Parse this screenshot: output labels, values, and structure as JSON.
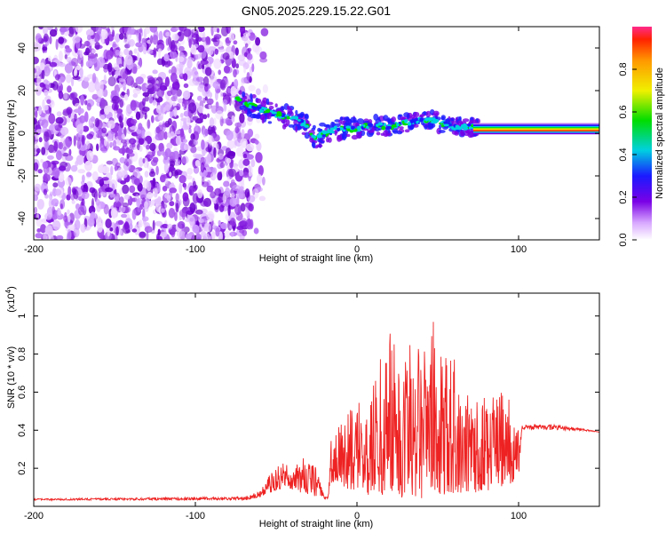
{
  "title": "GN05.2025.229.15.22.G01",
  "colors": {
    "snr_line": "#ee2222",
    "ridge_low": "#7a00e6",
    "ridge_mid": "#00d0e0",
    "ridge_high": "#00dd00",
    "noise": "#8a2be2"
  },
  "chart_data": [
    {
      "type": "heatmap",
      "title": "GN05.2025.229.15.22.G01",
      "xlabel": "Height of straight line (km)",
      "ylabel": "Frequency (Hz)",
      "xlim": [
        -200,
        150
      ],
      "ylim": [
        -50,
        50
      ],
      "xticks": [
        -200,
        -100,
        0,
        100
      ],
      "yticks": [
        -40,
        -20,
        0,
        20,
        40
      ],
      "colorbar": {
        "label": "Normalized spectral amplitude",
        "range": [
          0,
          1
        ],
        "ticks": [
          0.0,
          0.2,
          0.4,
          0.6,
          0.8
        ]
      },
      "noise_region_x": [
        -200,
        -65
      ],
      "ridge": {
        "x": [
          -75,
          -65,
          -55,
          -45,
          -38,
          -32,
          -26,
          -20,
          -12,
          0,
          10,
          20,
          30,
          40,
          45,
          50,
          60,
          70,
          80,
          90,
          100,
          110,
          120,
          130,
          140,
          150
        ],
        "frequency": [
          16,
          13,
          10,
          8,
          7,
          4,
          -2,
          0,
          2,
          2,
          4,
          3,
          5,
          6,
          7,
          5,
          3,
          3,
          2,
          2,
          2,
          2,
          2,
          2,
          2,
          2
        ]
      }
    },
    {
      "type": "line",
      "xlabel": "Height of straight line (km)",
      "ylabel": "SNR (10 * v/v)",
      "y_multiplier": "(x10",
      "y_multiplier_exp": "4",
      "y_multiplier_close": ")",
      "xlim": [
        -200,
        150
      ],
      "ylim": [
        0,
        11200
      ],
      "xticks": [
        -200,
        -100,
        0,
        100
      ],
      "yticks": [
        2000,
        4000,
        6000,
        8000,
        10000
      ],
      "ytick_labels": [
        "0.2",
        "0.4",
        "0.6",
        "0.8",
        "1"
      ],
      "series": [
        {
          "envelope_x": [
            -200,
            -70,
            -60,
            -55,
            -50,
            -45,
            -40,
            -35,
            -30,
            -25,
            -20,
            -18,
            -15,
            -10,
            -5,
            0,
            5,
            10,
            15,
            18,
            20,
            25,
            30,
            35,
            40,
            45,
            48,
            50,
            55,
            60,
            65,
            70,
            75,
            80,
            85,
            90,
            95,
            100,
            102,
            105,
            120,
            140,
            150
          ],
          "envelope_y": [
            400,
            500,
            800,
            1600,
            2000,
            2500,
            2000,
            2500,
            2600,
            2000,
            500,
            500,
            5000,
            4500,
            5000,
            5500,
            6000,
            6500,
            8000,
            9000,
            11200,
            7000,
            9000,
            9500,
            10300,
            9000,
            10300,
            8500,
            8500,
            8000,
            6000,
            6000,
            6500,
            5500,
            5800,
            6200,
            5500,
            4000,
            4300,
            4300,
            4300,
            4100,
            3900
          ],
          "floor_x": [
            -200,
            -70,
            -60,
            -45,
            -30,
            -20,
            -18,
            -15,
            0,
            20,
            40,
            60,
            80,
            95,
            100,
            102,
            150
          ],
          "floor_y": [
            300,
            300,
            500,
            1000,
            600,
            400,
            400,
            1200,
            700,
            400,
            400,
            600,
            800,
            1200,
            1500,
            4000,
            3900
          ]
        }
      ]
    }
  ]
}
